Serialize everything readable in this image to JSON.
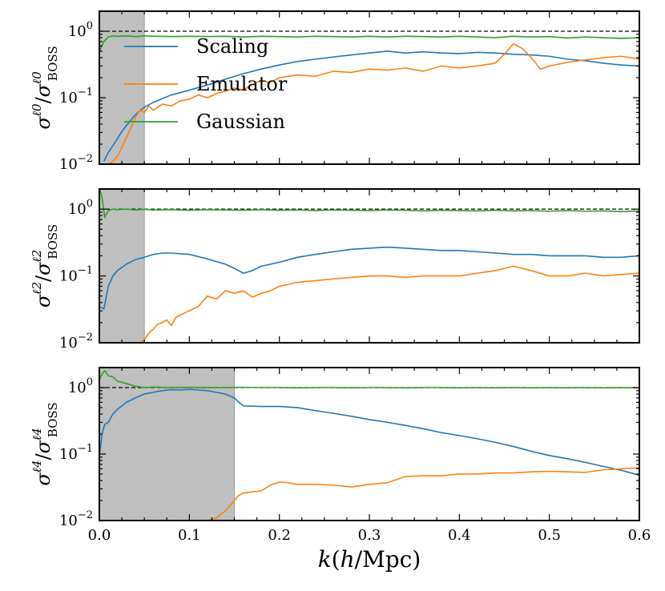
{
  "chart_data": {
    "type": "line",
    "xlabel": "k(h/Mpc)",
    "xlim": [
      0.0,
      0.6
    ],
    "x_ticks": [
      0.0,
      0.1,
      0.2,
      0.3,
      0.4,
      0.5,
      0.6
    ],
    "x_tick_labels": [
      "0.0",
      "0.1",
      "0.2",
      "0.3",
      "0.4",
      "0.5",
      "0.6"
    ],
    "y_scale": "log",
    "legend": {
      "placement": "upper-left",
      "entries": [
        {
          "name": "Scaling",
          "color": "#1f77b4"
        },
        {
          "name": "Emulator",
          "color": "#ff7f0e"
        },
        {
          "name": "Gaussian",
          "color": "#2ca02c"
        }
      ]
    },
    "panels": [
      {
        "ylabel": "σ^ℓ0 / σ^ℓ0_BOSS",
        "ylim": [
          0.01,
          2.0
        ],
        "y_ticks": [
          {
            "value": 0.01,
            "base": "10",
            "exp": "−2"
          },
          {
            "value": 0.1,
            "base": "10",
            "exp": "−1"
          },
          {
            "value": 1,
            "base": "10",
            "exp": "0"
          }
        ],
        "shaded_kmax": 0.05,
        "reference_line": 1.0,
        "series": [
          {
            "name": "Scaling",
            "color": "#1f77b4",
            "x": [
              0.005,
              0.01,
              0.015,
              0.02,
              0.025,
              0.03,
              0.035,
              0.04,
              0.045,
              0.05,
              0.06,
              0.07,
              0.08,
              0.1,
              0.12,
              0.14,
              0.16,
              0.18,
              0.2,
              0.22,
              0.24,
              0.26,
              0.28,
              0.3,
              0.32,
              0.34,
              0.36,
              0.38,
              0.4,
              0.42,
              0.44,
              0.46,
              0.48,
              0.5,
              0.52,
              0.54,
              0.56,
              0.58,
              0.6
            ],
            "y": [
              0.011,
              0.015,
              0.019,
              0.024,
              0.031,
              0.038,
              0.046,
              0.055,
              0.064,
              0.072,
              0.085,
              0.097,
              0.11,
              0.13,
              0.155,
              0.19,
              0.23,
              0.27,
              0.31,
              0.35,
              0.38,
              0.41,
              0.44,
              0.47,
              0.5,
              0.47,
              0.49,
              0.47,
              0.46,
              0.48,
              0.47,
              0.45,
              0.44,
              0.42,
              0.38,
              0.36,
              0.33,
              0.31,
              0.3
            ]
          },
          {
            "name": "Emulator",
            "color": "#ff7f0e",
            "x": [
              0.01,
              0.015,
              0.02,
              0.025,
              0.03,
              0.035,
              0.04,
              0.045,
              0.05,
              0.055,
              0.06,
              0.07,
              0.08,
              0.09,
              0.1,
              0.11,
              0.12,
              0.13,
              0.14,
              0.15,
              0.16,
              0.17,
              0.18,
              0.19,
              0.2,
              0.22,
              0.24,
              0.26,
              0.28,
              0.3,
              0.32,
              0.34,
              0.36,
              0.38,
              0.4,
              0.42,
              0.44,
              0.45,
              0.46,
              0.47,
              0.48,
              0.49,
              0.5,
              0.52,
              0.54,
              0.56,
              0.58,
              0.6
            ],
            "y": [
              0.01,
              0.011,
              0.013,
              0.018,
              0.025,
              0.035,
              0.05,
              0.065,
              0.06,
              0.075,
              0.065,
              0.08,
              0.075,
              0.09,
              0.095,
              0.11,
              0.1,
              0.115,
              0.125,
              0.14,
              0.13,
              0.16,
              0.18,
              0.17,
              0.2,
              0.22,
              0.21,
              0.25,
              0.24,
              0.27,
              0.26,
              0.28,
              0.25,
              0.3,
              0.28,
              0.3,
              0.33,
              0.45,
              0.65,
              0.55,
              0.4,
              0.27,
              0.3,
              0.34,
              0.37,
              0.4,
              0.42,
              0.38
            ]
          },
          {
            "name": "Gaussian",
            "color": "#2ca02c",
            "x": [
              0.0,
              0.005,
              0.01,
              0.015,
              0.02,
              0.03,
              0.04,
              0.05,
              0.06,
              0.08,
              0.1,
              0.12,
              0.14,
              0.16,
              0.18,
              0.2,
              0.22,
              0.24,
              0.26,
              0.28,
              0.3,
              0.32,
              0.34,
              0.36,
              0.38,
              0.4,
              0.42,
              0.44,
              0.46,
              0.48,
              0.5,
              0.52,
              0.54,
              0.56,
              0.58,
              0.6
            ],
            "y": [
              0.5,
              0.7,
              0.82,
              0.85,
              0.84,
              0.85,
              0.83,
              0.85,
              0.84,
              0.83,
              0.84,
              0.83,
              0.84,
              0.82,
              0.84,
              0.83,
              0.82,
              0.84,
              0.83,
              0.82,
              0.84,
              0.82,
              0.84,
              0.83,
              0.82,
              0.84,
              0.82,
              0.8,
              0.84,
              0.82,
              0.83,
              0.79,
              0.82,
              0.8,
              0.78,
              0.8
            ]
          }
        ]
      },
      {
        "ylabel": "σ^ℓ2 / σ^ℓ2_BOSS",
        "ylim": [
          0.01,
          2.0
        ],
        "y_ticks": [
          {
            "value": 0.01,
            "base": "10",
            "exp": "−2"
          },
          {
            "value": 0.1,
            "base": "10",
            "exp": "−1"
          },
          {
            "value": 1,
            "base": "10",
            "exp": "0"
          }
        ],
        "shaded_kmax": 0.05,
        "reference_line": 1.0,
        "series": [
          {
            "name": "Scaling",
            "color": "#1f77b4",
            "x": [
              0.0,
              0.005,
              0.01,
              0.015,
              0.02,
              0.03,
              0.04,
              0.05,
              0.06,
              0.07,
              0.08,
              0.1,
              0.12,
              0.14,
              0.15,
              0.16,
              0.17,
              0.18,
              0.2,
              0.22,
              0.24,
              0.26,
              0.28,
              0.3,
              0.32,
              0.34,
              0.36,
              0.38,
              0.4,
              0.42,
              0.44,
              0.46,
              0.48,
              0.5,
              0.52,
              0.54,
              0.56,
              0.58,
              0.6
            ],
            "y": [
              0.035,
              0.032,
              0.07,
              0.1,
              0.12,
              0.15,
              0.175,
              0.19,
              0.21,
              0.22,
              0.22,
              0.21,
              0.18,
              0.15,
              0.13,
              0.11,
              0.12,
              0.14,
              0.16,
              0.19,
              0.21,
              0.23,
              0.25,
              0.26,
              0.27,
              0.26,
              0.25,
              0.24,
              0.24,
              0.23,
              0.22,
              0.21,
              0.21,
              0.2,
              0.2,
              0.2,
              0.19,
              0.19,
              0.2
            ]
          },
          {
            "name": "Emulator",
            "color": "#ff7f0e",
            "x": [
              0.045,
              0.05,
              0.055,
              0.06,
              0.065,
              0.07,
              0.075,
              0.08,
              0.085,
              0.09,
              0.1,
              0.11,
              0.12,
              0.13,
              0.14,
              0.15,
              0.16,
              0.17,
              0.18,
              0.19,
              0.2,
              0.22,
              0.24,
              0.26,
              0.28,
              0.3,
              0.32,
              0.34,
              0.36,
              0.38,
              0.4,
              0.42,
              0.44,
              0.46,
              0.48,
              0.5,
              0.52,
              0.54,
              0.56,
              0.58,
              0.6
            ],
            "y": [
              0.01,
              0.011,
              0.014,
              0.016,
              0.019,
              0.02,
              0.022,
              0.018,
              0.024,
              0.026,
              0.03,
              0.035,
              0.05,
              0.045,
              0.06,
              0.055,
              0.06,
              0.048,
              0.055,
              0.06,
              0.07,
              0.08,
              0.085,
              0.09,
              0.095,
              0.1,
              0.1,
              0.095,
              0.1,
              0.1,
              0.1,
              0.11,
              0.12,
              0.14,
              0.12,
              0.1,
              0.1,
              0.11,
              0.1,
              0.105,
              0.11
            ]
          },
          {
            "name": "Gaussian",
            "color": "#2ca02c",
            "x": [
              0.0,
              0.003,
              0.006,
              0.01,
              0.015,
              0.02,
              0.03,
              0.04,
              0.05,
              0.06,
              0.08,
              0.1,
              0.12,
              0.14,
              0.16,
              0.18,
              0.2,
              0.22,
              0.24,
              0.26,
              0.28,
              0.3,
              0.32,
              0.34,
              0.36,
              0.38,
              0.4,
              0.42,
              0.44,
              0.46,
              0.48,
              0.5,
              0.52,
              0.54,
              0.56,
              0.58,
              0.6
            ],
            "y": [
              2.1,
              1.5,
              0.75,
              0.95,
              1.0,
              0.98,
              1.0,
              0.97,
              0.99,
              0.97,
              0.98,
              0.96,
              0.98,
              0.97,
              0.96,
              0.98,
              0.96,
              0.97,
              0.95,
              0.97,
              0.96,
              0.95,
              0.97,
              0.96,
              0.94,
              0.96,
              0.95,
              0.94,
              0.96,
              0.94,
              0.95,
              0.93,
              0.95,
              0.93,
              0.94,
              0.92,
              0.94
            ]
          }
        ]
      },
      {
        "ylabel": "σ^ℓ4 / σ^ℓ4_BOSS",
        "ylim": [
          0.01,
          2.0
        ],
        "y_ticks": [
          {
            "value": 0.01,
            "base": "10",
            "exp": "−2"
          },
          {
            "value": 0.1,
            "base": "10",
            "exp": "−1"
          },
          {
            "value": 1,
            "base": "10",
            "exp": "0"
          }
        ],
        "shaded_kmax": 0.15,
        "reference_line": 1.0,
        "series": [
          {
            "name": "Scaling",
            "color": "#1f77b4",
            "x": [
              0.0,
              0.003,
              0.006,
              0.01,
              0.015,
              0.02,
              0.03,
              0.04,
              0.05,
              0.06,
              0.07,
              0.08,
              0.09,
              0.1,
              0.11,
              0.12,
              0.13,
              0.14,
              0.15,
              0.155,
              0.16,
              0.18,
              0.2,
              0.22,
              0.24,
              0.26,
              0.28,
              0.3,
              0.32,
              0.34,
              0.36,
              0.38,
              0.4,
              0.42,
              0.44,
              0.46,
              0.48,
              0.5,
              0.52,
              0.54,
              0.56,
              0.58,
              0.6
            ],
            "y": [
              0.09,
              0.2,
              0.28,
              0.3,
              0.4,
              0.47,
              0.6,
              0.7,
              0.8,
              0.85,
              0.9,
              0.93,
              0.92,
              0.94,
              0.92,
              0.9,
              0.85,
              0.8,
              0.7,
              0.6,
              0.53,
              0.52,
              0.52,
              0.5,
              0.45,
              0.41,
              0.37,
              0.33,
              0.3,
              0.27,
              0.24,
              0.21,
              0.19,
              0.17,
              0.15,
              0.13,
              0.11,
              0.095,
              0.085,
              0.075,
              0.065,
              0.057,
              0.048
            ]
          },
          {
            "name": "Emulator",
            "color": "#ff7f0e",
            "x": [
              0.12,
              0.13,
              0.14,
              0.15,
              0.155,
              0.16,
              0.17,
              0.18,
              0.19,
              0.2,
              0.21,
              0.22,
              0.24,
              0.26,
              0.28,
              0.3,
              0.32,
              0.34,
              0.36,
              0.38,
              0.4,
              0.42,
              0.44,
              0.46,
              0.48,
              0.5,
              0.52,
              0.54,
              0.56,
              0.58,
              0.6
            ],
            "y": [
              0.01,
              0.011,
              0.014,
              0.02,
              0.024,
              0.026,
              0.027,
              0.028,
              0.034,
              0.038,
              0.037,
              0.035,
              0.035,
              0.034,
              0.032,
              0.035,
              0.037,
              0.046,
              0.047,
              0.047,
              0.05,
              0.05,
              0.052,
              0.052,
              0.054,
              0.055,
              0.054,
              0.053,
              0.058,
              0.06,
              0.062
            ]
          },
          {
            "name": "Gaussian",
            "color": "#2ca02c",
            "x": [
              0.0,
              0.003,
              0.006,
              0.01,
              0.015,
              0.02,
              0.03,
              0.04,
              0.05,
              0.06,
              0.08,
              0.1,
              0.12,
              0.14,
              0.16,
              0.18,
              0.2,
              0.22,
              0.24,
              0.26,
              0.28,
              0.3,
              0.32,
              0.34,
              0.36,
              0.38,
              0.4,
              0.42,
              0.44,
              0.46,
              0.48,
              0.5,
              0.52,
              0.54,
              0.56,
              0.58,
              0.6
            ],
            "y": [
              1.3,
              1.6,
              1.8,
              1.5,
              1.45,
              1.25,
              1.15,
              1.05,
              1.0,
              1.02,
              1.0,
              1.01,
              1.0,
              1.0,
              1.01,
              1.0,
              1.0,
              0.99,
              1.0,
              1.0,
              0.99,
              1.0,
              1.0,
              0.99,
              1.0,
              1.0,
              0.99,
              1.0,
              0.99,
              1.0,
              0.99,
              1.0,
              0.99,
              1.0,
              0.99,
              1.0,
              0.99
            ]
          }
        ]
      }
    ]
  }
}
